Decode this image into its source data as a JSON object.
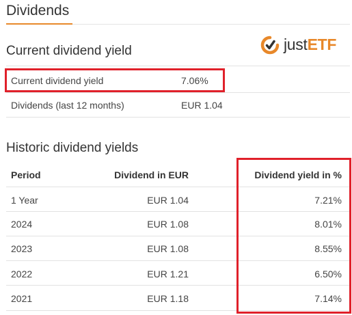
{
  "section": {
    "title": "Dividends"
  },
  "logo": {
    "just": "just",
    "etf": "ETF"
  },
  "current": {
    "heading": "Current dividend yield",
    "rows": [
      {
        "label": "Current dividend yield",
        "value": "7.06%"
      },
      {
        "label": "Dividends (last 12 months)",
        "value": "EUR 1.04"
      }
    ]
  },
  "historic": {
    "heading": "Historic dividend yields",
    "columns": [
      "Period",
      "Dividend in EUR",
      "Dividend yield in %"
    ],
    "rows": [
      {
        "period": "1 Year",
        "dividend": "EUR 1.04",
        "yield": "7.21%"
      },
      {
        "period": "2024",
        "dividend": "EUR 1.08",
        "yield": "8.01%"
      },
      {
        "period": "2023",
        "dividend": "EUR 1.08",
        "yield": "8.55%"
      },
      {
        "period": "2022",
        "dividend": "EUR 1.21",
        "yield": "6.50%"
      },
      {
        "period": "2021",
        "dividend": "EUR 1.18",
        "yield": "7.14%"
      }
    ]
  },
  "colors": {
    "accent": "#e8882a",
    "highlight": "#e0202a"
  },
  "icons": {
    "logo_mark": "justetf-logo-icon"
  }
}
